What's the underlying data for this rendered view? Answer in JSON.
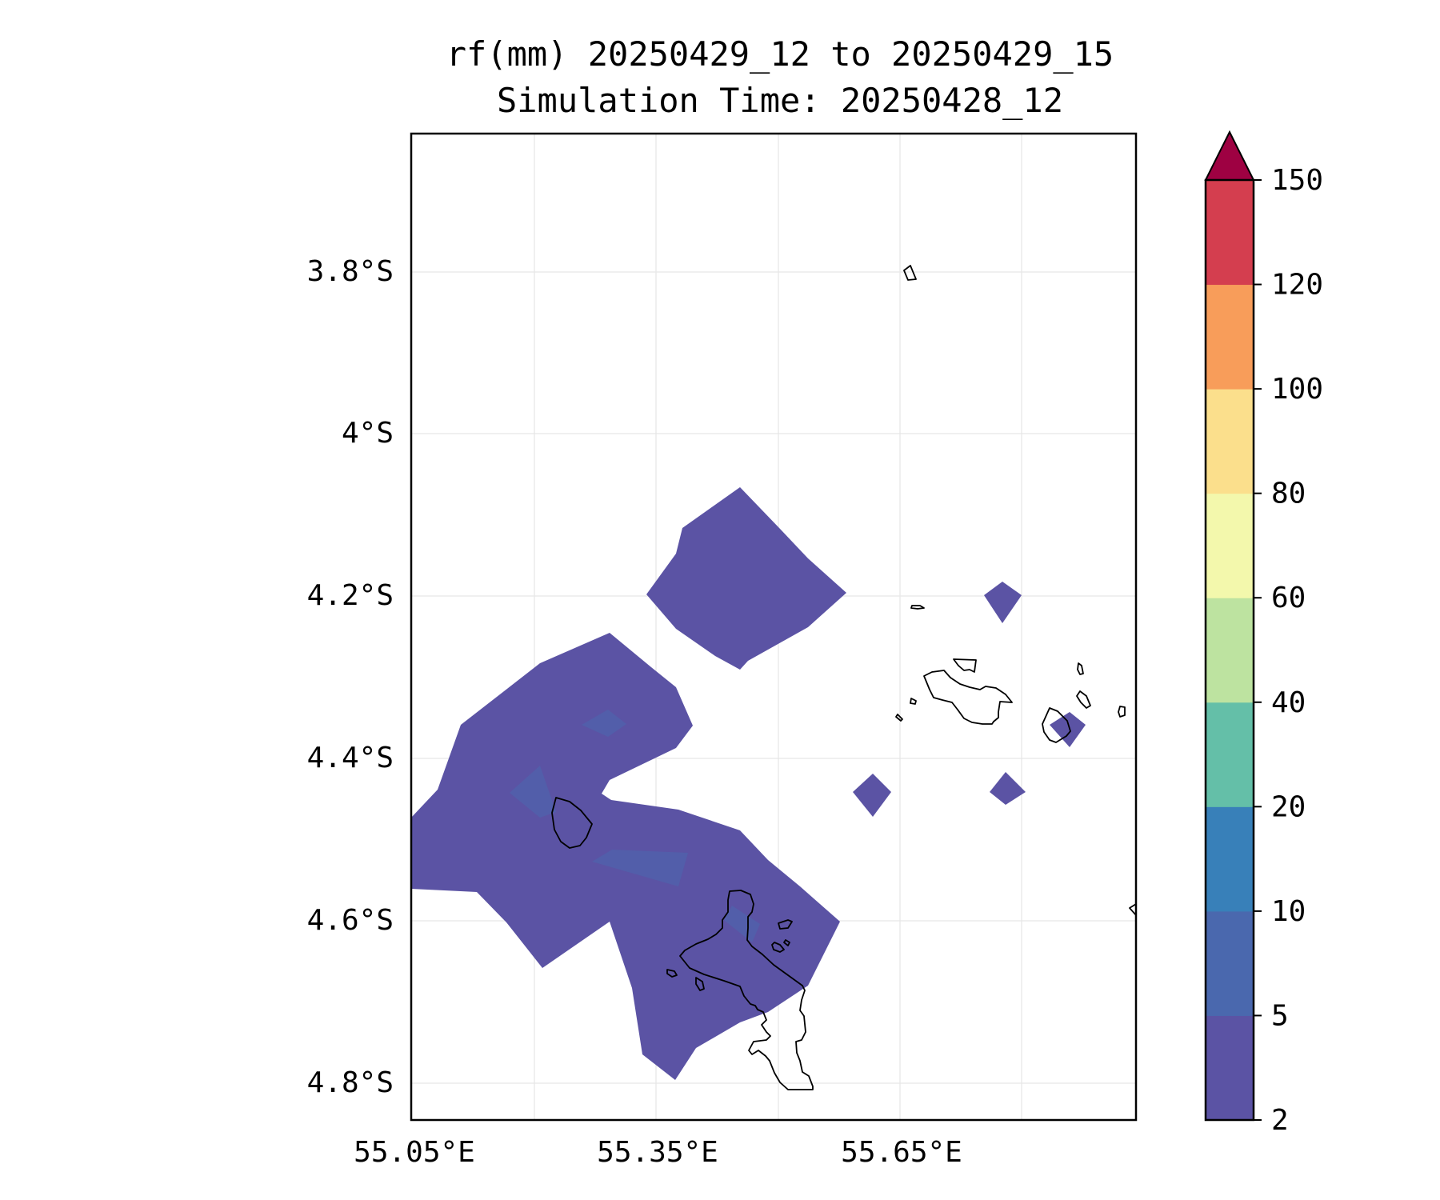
{
  "title": {
    "line1": "rf(mm) 20250429_12 to 20250429_15",
    "line2": "Simulation Time: 20250428_12"
  },
  "chart_data": {
    "type": "contour-map",
    "variable": "rf(mm)",
    "lat_ticks": [
      "3.8°S",
      "4°S",
      "4.2°S",
      "4.4°S",
      "4.6°S",
      "4.8°S"
    ],
    "lon_ticks": [
      "55.05°E",
      "55.35°E",
      "55.65°E"
    ],
    "grid": true,
    "colorbar": {
      "levels": [
        2,
        5,
        10,
        20,
        40,
        60,
        80,
        100,
        120,
        150
      ],
      "labels": [
        "2",
        "5",
        "10",
        "20",
        "40",
        "60",
        "80",
        "100",
        "120",
        "150"
      ],
      "colors": [
        "#5b53a4",
        "#4a68ae",
        "#3880b9",
        "#64bfa8",
        "#bde3a0",
        "#f3f8ac",
        "#fbdf8c",
        "#f89d5a",
        "#d43e4f",
        "#9e0142"
      ],
      "extend": "max"
    },
    "rainfall_range_depicted": "2-5 mm",
    "colors": {
      "rain_2_5": "#5b53a4",
      "rain_5_10": "#4a68ae",
      "coastline": "#000000",
      "grid": "#e6e6e6"
    }
  }
}
